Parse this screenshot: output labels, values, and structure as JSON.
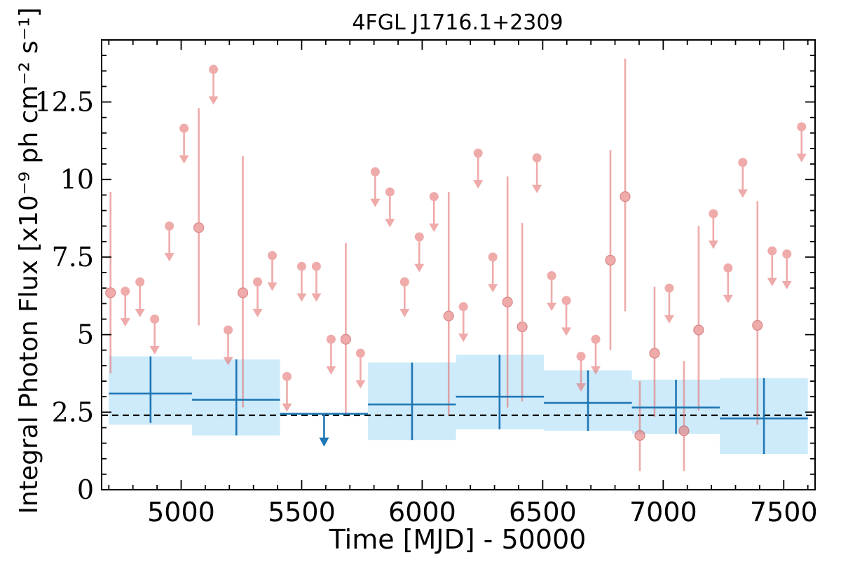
{
  "chart_data": {
    "type": "scatter",
    "title": "4FGL J1716.1+2309",
    "xlabel": "Time [MJD] - 50000",
    "ylabel": "Integral Photon Flux [x10⁻⁹ ph cm⁻² s⁻¹]",
    "xlim": [
      4670,
      7630
    ],
    "ylim": [
      0,
      14.5
    ],
    "xticks": [
      5000,
      5500,
      6000,
      6500,
      7000,
      7500
    ],
    "xtick_labels": [
      "5000",
      "5500",
      "6000",
      "6500",
      "7000",
      "7500"
    ],
    "yticks": [
      0,
      2.5,
      5,
      7.5,
      10,
      12.5
    ],
    "ytick_labels": [
      "0",
      "2.5",
      "5",
      "7.5",
      "10",
      "12.5"
    ],
    "grid": false,
    "reference_line": {
      "y": 2.4,
      "style": "dashed",
      "color": "#000000"
    },
    "colors": {
      "fine_bins": "#e57373",
      "coarse_bins": "#1f77b4",
      "coarse_band": "#cdebfa",
      "reference": "#000000"
    },
    "series": [
      {
        "bin": "fine",
        "points": [
          {
            "x": 4707,
            "y": 6.35,
            "lo": 3.75,
            "hi": 9.6
          },
          {
            "x": 4768,
            "y": 6.4,
            "upper_limit": true
          },
          {
            "x": 4829,
            "y": 6.7,
            "upper_limit": true
          },
          {
            "x": 4890,
            "y": 5.5,
            "upper_limit": true
          },
          {
            "x": 4951,
            "y": 8.5,
            "upper_limit": true
          },
          {
            "x": 5012,
            "y": 11.65,
            "upper_limit": true
          },
          {
            "x": 5073,
            "y": 8.45,
            "lo": 5.3,
            "hi": 12.3
          },
          {
            "x": 5134,
            "y": 13.55,
            "upper_limit": true
          },
          {
            "x": 5195,
            "y": 5.15,
            "upper_limit": true
          },
          {
            "x": 5256,
            "y": 6.35,
            "lo": 2.65,
            "hi": 10.75
          },
          {
            "x": 5317,
            "y": 6.7,
            "upper_limit": true
          },
          {
            "x": 5378,
            "y": 7.55,
            "upper_limit": true
          },
          {
            "x": 5439,
            "y": 3.65,
            "upper_limit": true
          },
          {
            "x": 5500,
            "y": 7.2,
            "upper_limit": true
          },
          {
            "x": 5561,
            "y": 7.2,
            "upper_limit": true
          },
          {
            "x": 5622,
            "y": 4.85,
            "upper_limit": true
          },
          {
            "x": 5683,
            "y": 4.85,
            "lo": 2.45,
            "hi": 7.95
          },
          {
            "x": 5744,
            "y": 4.4,
            "upper_limit": true
          },
          {
            "x": 5805,
            "y": 10.25,
            "upper_limit": true
          },
          {
            "x": 5866,
            "y": 9.6,
            "upper_limit": true
          },
          {
            "x": 5927,
            "y": 6.7,
            "upper_limit": true
          },
          {
            "x": 5988,
            "y": 8.15,
            "upper_limit": true
          },
          {
            "x": 6049,
            "y": 9.45,
            "upper_limit": true
          },
          {
            "x": 6110,
            "y": 5.6,
            "lo": 2.4,
            "hi": 9.6
          },
          {
            "x": 6171,
            "y": 5.9,
            "upper_limit": true
          },
          {
            "x": 6232,
            "y": 10.85,
            "upper_limit": true
          },
          {
            "x": 6293,
            "y": 7.5,
            "upper_limit": true
          },
          {
            "x": 6354,
            "y": 6.05,
            "lo": 2.65,
            "hi": 10.1
          },
          {
            "x": 6415,
            "y": 5.25,
            "lo": 2.85,
            "hi": 8.6
          },
          {
            "x": 6476,
            "y": 10.7,
            "upper_limit": true
          },
          {
            "x": 6537,
            "y": 6.9,
            "upper_limit": true
          },
          {
            "x": 6598,
            "y": 6.1,
            "upper_limit": true
          },
          {
            "x": 6659,
            "y": 4.3,
            "upper_limit": true
          },
          {
            "x": 6720,
            "y": 4.85,
            "upper_limit": true
          },
          {
            "x": 6781,
            "y": 7.4,
            "lo": 4.5,
            "hi": 10.95
          },
          {
            "x": 6842,
            "y": 9.45,
            "lo": 5.75,
            "hi": 13.9
          },
          {
            "x": 6903,
            "y": 1.75,
            "lo": 0.6,
            "hi": 3.5
          },
          {
            "x": 6964,
            "y": 4.4,
            "lo": 2.35,
            "hi": 6.55
          },
          {
            "x": 7025,
            "y": 6.5,
            "upper_limit": true
          },
          {
            "x": 7086,
            "y": 1.9,
            "lo": 0.6,
            "hi": 4.15
          },
          {
            "x": 7147,
            "y": 5.15,
            "lo": 2.55,
            "hi": 8.5
          },
          {
            "x": 7208,
            "y": 8.9,
            "upper_limit": true
          },
          {
            "x": 7269,
            "y": 7.15,
            "upper_limit": true
          },
          {
            "x": 7330,
            "y": 10.55,
            "upper_limit": true
          },
          {
            "x": 7391,
            "y": 5.3,
            "lo": 2.1,
            "hi": 9.3
          },
          {
            "x": 7452,
            "y": 7.7,
            "upper_limit": true
          },
          {
            "x": 7513,
            "y": 7.6,
            "upper_limit": true
          },
          {
            "x": 7574,
            "y": 11.7,
            "upper_limit": true
          }
        ]
      },
      {
        "bin": "coarse",
        "points": [
          {
            "x": 4873,
            "x_lo": 4700,
            "x_hi": 5045,
            "y": 3.1,
            "lo": 2.15,
            "hi": 4.3,
            "band_lo": 2.1,
            "band_hi": 4.3
          },
          {
            "x": 5229,
            "x_lo": 5045,
            "x_hi": 5410,
            "y": 2.9,
            "lo": 1.75,
            "hi": 4.2,
            "band_lo": 1.75,
            "band_hi": 4.2
          },
          {
            "x": 5593,
            "x_lo": 5410,
            "x_hi": 5775,
            "y": 2.45,
            "upper_limit": true
          },
          {
            "x": 5958,
            "x_lo": 5775,
            "x_hi": 6140,
            "y": 2.75,
            "lo": 1.6,
            "hi": 4.1,
            "band_lo": 1.6,
            "band_hi": 4.1
          },
          {
            "x": 6321,
            "x_lo": 6140,
            "x_hi": 6505,
            "y": 3.0,
            "lo": 1.95,
            "hi": 4.35,
            "band_lo": 1.95,
            "band_hi": 4.35
          },
          {
            "x": 6688,
            "x_lo": 6505,
            "x_hi": 6870,
            "y": 2.8,
            "lo": 1.9,
            "hi": 3.85,
            "band_lo": 1.9,
            "band_hi": 3.85
          },
          {
            "x": 7053,
            "x_lo": 6870,
            "x_hi": 7235,
            "y": 2.65,
            "lo": 1.8,
            "hi": 3.55,
            "band_lo": 1.8,
            "band_hi": 3.55
          },
          {
            "x": 7418,
            "x_lo": 7235,
            "x_hi": 7600,
            "y": 2.3,
            "lo": 1.15,
            "hi": 3.6,
            "band_lo": 1.15,
            "band_hi": 3.6
          }
        ]
      }
    ]
  }
}
